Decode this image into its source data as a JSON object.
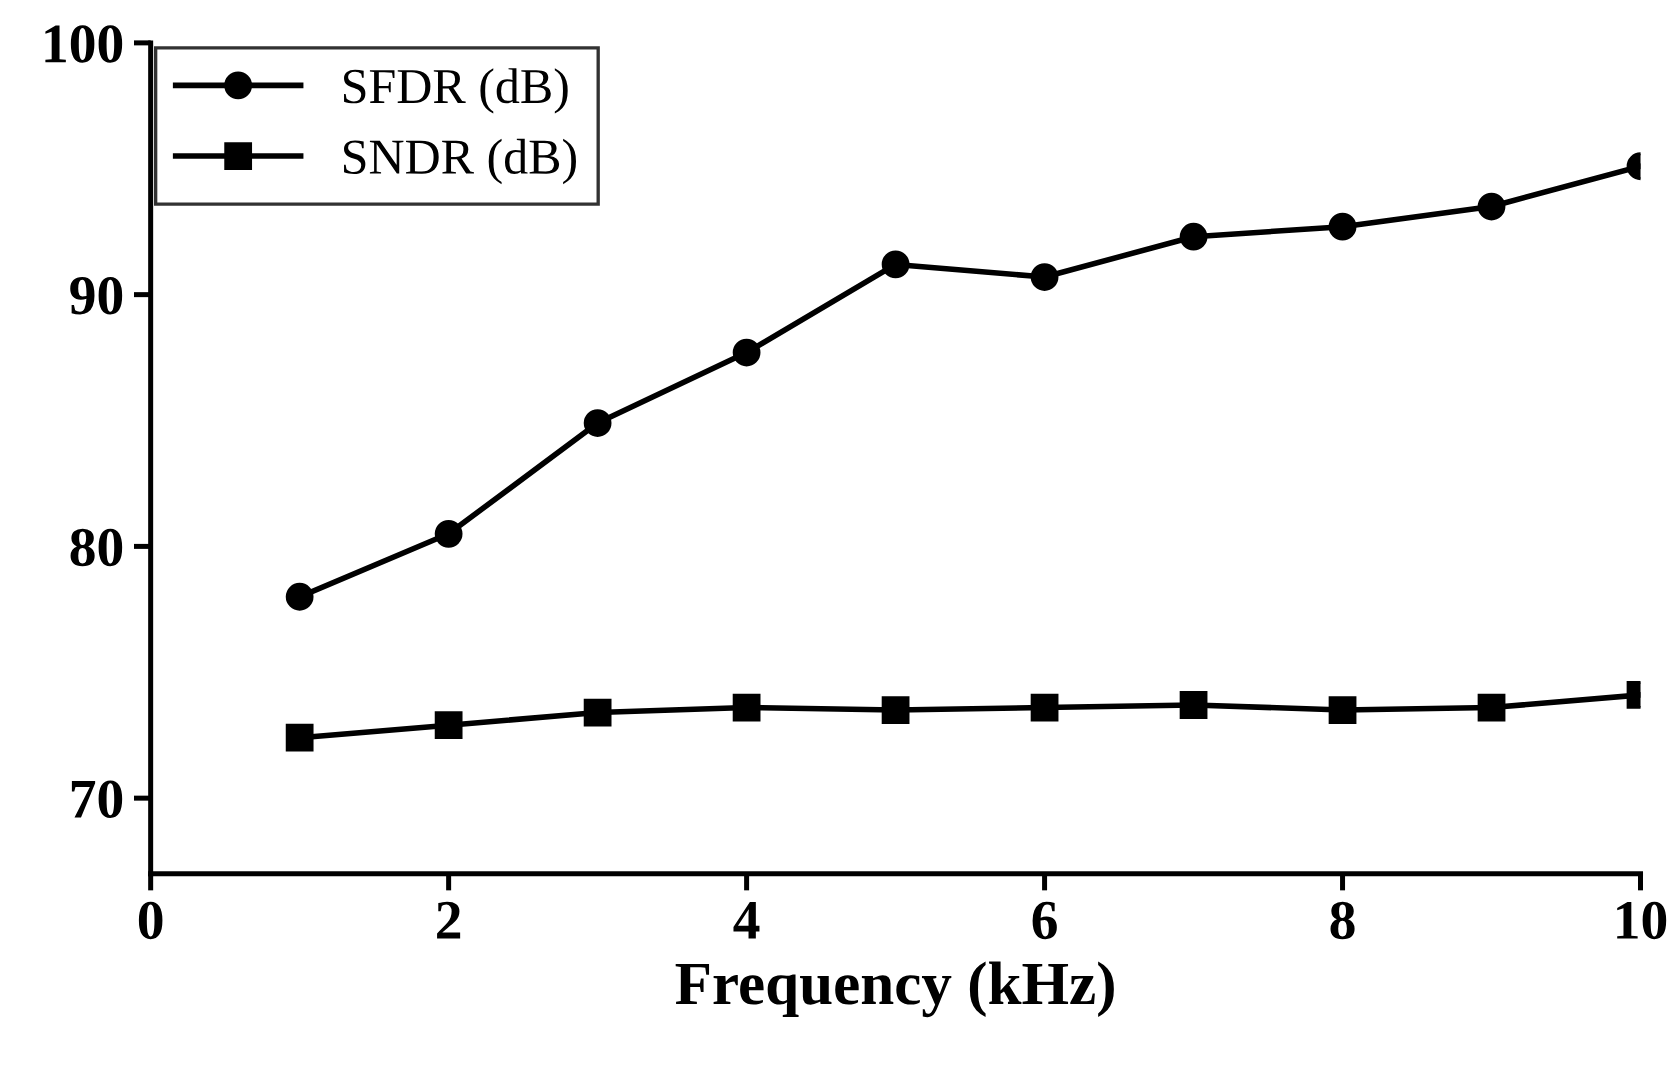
{
  "chart_data": {
    "type": "line",
    "xlabel": "Frequency (kHz)",
    "x": [
      1,
      2,
      3,
      4,
      5,
      6,
      7,
      8,
      9,
      10
    ],
    "series": [
      {
        "name": "SFDR (dB)",
        "color": "#000000",
        "marker": "circle",
        "values": [
          78.0,
          80.5,
          84.9,
          87.7,
          91.2,
          90.7,
          92.3,
          92.7,
          93.5,
          95.1
        ]
      },
      {
        "name": "SNDR (dB)",
        "color": "#000000",
        "marker": "square",
        "values": [
          72.4,
          72.9,
          73.4,
          73.6,
          73.5,
          73.6,
          73.7,
          73.5,
          73.6,
          74.1
        ]
      }
    ],
    "xlim": [
      0,
      10
    ],
    "xticks": [
      0,
      2,
      4,
      6,
      8,
      10
    ],
    "ylim": [
      67,
      100
    ],
    "yticks": [
      70,
      80,
      90,
      100
    ],
    "grid": false,
    "legend": "top left",
    "line_style": "solid"
  }
}
